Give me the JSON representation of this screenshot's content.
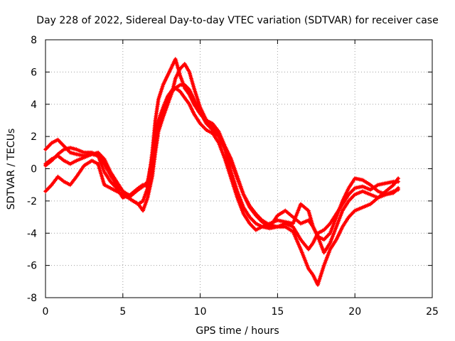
{
  "chart_data": {
    "type": "scatter",
    "title": "Day 228 of 2022, Sidereal Day-to-day VTEC variation (SDTVAR) for receiver case",
    "xlabel": "GPS time / hours",
    "ylabel": "SDTVAR / TECUs",
    "xlim": [
      0,
      25
    ],
    "ylim": [
      -8,
      8
    ],
    "xticks": [
      0,
      5,
      10,
      15,
      20,
      25
    ],
    "yticks": [
      -8,
      -6,
      -4,
      -2,
      0,
      2,
      4,
      6,
      8
    ],
    "grid": true,
    "marker": "+",
    "color": "#ff0000",
    "series": [
      {
        "name": "series-1",
        "x": [
          0,
          0.4,
          0.8,
          1.2,
          1.6,
          2.0,
          2.5,
          3.0,
          3.4,
          3.8,
          4.2,
          4.6,
          5.0,
          5.5,
          6.0,
          6.3,
          6.6,
          6.9,
          7.1,
          7.3,
          7.6,
          7.9,
          8.2,
          8.4,
          8.7,
          9.0,
          9.3,
          9.6,
          10.0,
          10.4,
          10.8,
          11.2,
          11.6,
          12.0,
          12.4,
          12.8,
          13.2,
          13.6,
          14.0,
          14.5,
          15.0,
          15.5,
          16.0,
          16.5,
          17.0,
          17.3,
          17.6,
          18.0,
          18.4,
          18.8,
          19.2,
          19.6,
          20.0,
          20.5,
          21.0,
          21.5,
          22.0,
          22.5,
          22.8
        ],
        "y": [
          0.3,
          0.6,
          0.8,
          0.5,
          0.3,
          0.5,
          0.7,
          0.9,
          0.8,
          0.3,
          -0.4,
          -1.0,
          -1.4,
          -1.7,
          -1.3,
          -1.1,
          -0.8,
          0.5,
          1.8,
          2.8,
          3.6,
          4.3,
          4.8,
          5.0,
          5.2,
          5.2,
          4.9,
          4.3,
          3.5,
          2.8,
          2.4,
          2.0,
          1.2,
          0.4,
          -0.6,
          -1.6,
          -2.3,
          -2.8,
          -3.2,
          -3.5,
          -3.6,
          -3.4,
          -3.6,
          -4.4,
          -5.0,
          -4.6,
          -4.0,
          -3.8,
          -3.4,
          -2.8,
          -2.2,
          -1.6,
          -1.2,
          -1.1,
          -1.3,
          -1.0,
          -0.9,
          -0.8,
          -0.8
        ]
      },
      {
        "name": "series-2",
        "x": [
          0,
          0.4,
          0.8,
          1.2,
          1.6,
          2.0,
          2.5,
          3.0,
          3.4,
          3.8,
          4.2,
          4.6,
          5.0,
          5.5,
          6.0,
          6.3,
          6.6,
          6.9,
          7.1,
          7.3,
          7.6,
          7.9,
          8.2,
          8.4,
          8.7,
          9.0,
          9.3,
          9.6,
          10.0,
          10.4,
          10.8,
          11.2,
          11.6,
          12.0,
          12.4,
          12.8,
          13.2,
          13.6,
          14.0,
          14.5,
          15.0,
          15.5,
          16.0,
          16.5,
          17.0,
          17.3,
          17.6,
          18.0,
          18.4,
          18.8,
          19.2,
          19.6,
          20.0,
          20.5,
          21.0,
          21.5,
          22.0,
          22.5,
          22.8
        ],
        "y": [
          -1.4,
          -1.0,
          -0.5,
          -0.8,
          -1.0,
          -0.5,
          0.2,
          0.5,
          0.3,
          -1.0,
          -1.2,
          -1.4,
          -1.6,
          -1.9,
          -2.2,
          -2.6,
          -1.8,
          -0.5,
          1.0,
          2.3,
          3.2,
          4.0,
          4.8,
          5.6,
          6.2,
          6.5,
          6.0,
          5.0,
          3.8,
          3.0,
          2.6,
          2.2,
          1.2,
          -0.2,
          -1.4,
          -2.4,
          -3.0,
          -3.4,
          -3.6,
          -3.7,
          -3.6,
          -3.6,
          -3.9,
          -5.0,
          -6.2,
          -6.6,
          -7.2,
          -6.0,
          -5.0,
          -4.4,
          -3.6,
          -3.0,
          -2.6,
          -2.4,
          -2.2,
          -1.8,
          -1.6,
          -1.4,
          -1.3
        ]
      },
      {
        "name": "series-3",
        "x": [
          0,
          0.4,
          0.8,
          1.2,
          1.6,
          2.0,
          2.5,
          3.0,
          3.4,
          3.8,
          4.2,
          4.6,
          5.0,
          5.5,
          6.0,
          6.3,
          6.6,
          6.9,
          7.1,
          7.3,
          7.6,
          7.9,
          8.2,
          8.4,
          8.7,
          9.0,
          9.3,
          9.6,
          10.0,
          10.4,
          10.8,
          11.2,
          11.6,
          12.0,
          12.4,
          12.8,
          13.2,
          13.6,
          14.0,
          14.5,
          15.0,
          15.5,
          16.0,
          16.5,
          17.0,
          17.3,
          17.6,
          18.0,
          18.4,
          18.8,
          19.2,
          19.6,
          20.0,
          20.5,
          21.0,
          21.5,
          22.0,
          22.5,
          22.8
        ],
        "y": [
          1.2,
          1.6,
          1.8,
          1.4,
          1.0,
          0.9,
          0.8,
          0.9,
          1.0,
          0.6,
          -0.2,
          -0.8,
          -1.4,
          -1.9,
          -2.2,
          -2.0,
          -1.2,
          1.0,
          3.0,
          4.3,
          5.2,
          5.8,
          6.4,
          6.8,
          5.8,
          5.0,
          4.6,
          4.0,
          3.4,
          3.0,
          2.8,
          2.3,
          1.4,
          0.6,
          -0.5,
          -1.6,
          -2.4,
          -2.9,
          -3.3,
          -3.6,
          -2.9,
          -2.6,
          -3.0,
          -3.4,
          -3.2,
          -3.6,
          -4.2,
          -5.2,
          -4.6,
          -3.6,
          -2.6,
          -2.0,
          -1.6,
          -1.4,
          -1.6,
          -1.8,
          -1.4,
          -1.0,
          -0.6
        ]
      },
      {
        "name": "series-4",
        "x": [
          0,
          0.4,
          0.8,
          1.2,
          1.6,
          2.0,
          2.5,
          3.0,
          3.4,
          3.8,
          4.2,
          4.6,
          5.0,
          5.5,
          6.0,
          6.3,
          6.6,
          6.9,
          7.1,
          7.3,
          7.6,
          7.9,
          8.2,
          8.4,
          8.7,
          9.0,
          9.3,
          9.6,
          10.0,
          10.4,
          10.8,
          11.2,
          11.6,
          12.0,
          12.4,
          12.8,
          13.2,
          13.6,
          14.0,
          14.5,
          15.0,
          15.5,
          16.0,
          16.5,
          17.0,
          17.3,
          17.6,
          18.0,
          18.4,
          18.8,
          19.2,
          19.6,
          20.0,
          20.5,
          21.0,
          21.5,
          22.0,
          22.5,
          22.8
        ],
        "y": [
          0.2,
          0.5,
          0.9,
          1.2,
          1.3,
          1.2,
          1.0,
          1.0,
          0.8,
          -0.2,
          -0.8,
          -1.2,
          -1.8,
          -1.6,
          -1.2,
          -1.0,
          -1.1,
          0.6,
          2.0,
          3.0,
          3.8,
          4.5,
          4.9,
          5.0,
          4.8,
          4.4,
          4.0,
          3.4,
          2.8,
          2.4,
          2.2,
          1.6,
          0.6,
          -0.6,
          -1.8,
          -2.8,
          -3.4,
          -3.8,
          -3.6,
          -3.4,
          -3.2,
          -3.3,
          -3.4,
          -2.2,
          -2.6,
          -3.6,
          -4.2,
          -4.4,
          -4.0,
          -3.0,
          -2.0,
          -1.2,
          -0.6,
          -0.7,
          -1.0,
          -1.4,
          -1.6,
          -1.5,
          -1.2
        ]
      }
    ]
  }
}
